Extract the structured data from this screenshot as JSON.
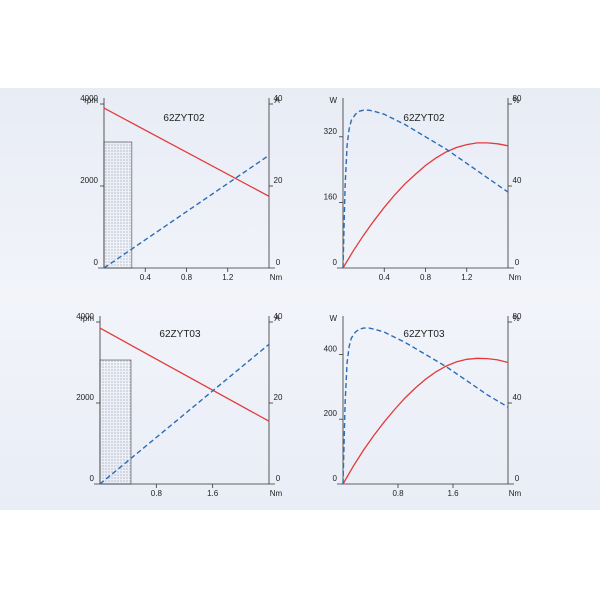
{
  "chart_data": [
    {
      "type": "line",
      "title": "62ZYT02",
      "left_unit": "rpm",
      "right_unit": "A",
      "x_unit": "Nm",
      "xlim": [
        0,
        1.6
      ],
      "ylim_left": [
        0,
        4000
      ],
      "ylim_right": [
        0,
        40
      ],
      "x_ticks": [
        "0.4",
        "0.8",
        "1.2"
      ],
      "x_tick_values": [
        0.4,
        0.8,
        1.2
      ],
      "left_ticks": [
        "0",
        "2000",
        "4000"
      ],
      "left_tick_values": [
        0,
        2000,
        4000
      ],
      "right_ticks": [
        "0",
        "20",
        "40"
      ],
      "right_tick_values": [
        0,
        20,
        40
      ],
      "shaded_region_x": [
        0,
        0.27
      ],
      "series": [
        {
          "axis": "left",
          "style": "solid",
          "color": "#e23a3a",
          "x": [
            0,
            1.6
          ],
          "y": [
            3900,
            1750
          ]
        },
        {
          "axis": "right",
          "style": "dashed",
          "color": "#2a6db5",
          "x": [
            0,
            1.6
          ],
          "y": [
            0,
            27.5
          ]
        }
      ]
    },
    {
      "type": "line",
      "title": "62ZYT02",
      "left_unit": "W",
      "right_unit": "%",
      "x_unit": "Nm",
      "xlim": [
        0,
        1.6
      ],
      "ylim_left": [
        0,
        400
      ],
      "ylim_right": [
        0,
        80
      ],
      "x_ticks": [
        "0.4",
        "0.8",
        "1.2"
      ],
      "x_tick_values": [
        0.4,
        0.8,
        1.2
      ],
      "left_ticks": [
        "0",
        "160",
        "320"
      ],
      "left_tick_values": [
        0,
        160,
        320
      ],
      "right_ticks": [
        "0",
        "40",
        "80"
      ],
      "right_tick_values": [
        0,
        40,
        80
      ],
      "series": [
        {
          "axis": "left",
          "style": "solid",
          "color": "#e23a3a",
          "x": [
            0,
            0.1,
            0.2,
            0.3,
            0.4,
            0.5,
            0.6,
            0.7,
            0.8,
            0.9,
            1.0,
            1.1,
            1.2,
            1.3,
            1.4,
            1.5,
            1.6
          ],
          "y": [
            0,
            42,
            80,
            115,
            148,
            178,
            205,
            228,
            250,
            268,
            283,
            294,
            301,
            305,
            305,
            303,
            298
          ]
        },
        {
          "axis": "right",
          "style": "dashed",
          "color": "#2a6db5",
          "x": [
            0,
            0.02,
            0.04,
            0.06,
            0.08,
            0.12,
            0.16,
            0.2,
            0.25,
            0.3,
            0.4,
            0.5,
            0.6,
            0.8,
            1.0,
            1.2,
            1.4,
            1.6
          ],
          "y": [
            0,
            40,
            60,
            68,
            72,
            75,
            76.5,
            77,
            77,
            76.5,
            75,
            72.5,
            70,
            64,
            58,
            51,
            44,
            37
          ]
        }
      ]
    },
    {
      "type": "line",
      "title": "62ZYT03",
      "left_unit": "rpm",
      "right_unit": "A",
      "x_unit": "Nm",
      "xlim": [
        0,
        2.4
      ],
      "ylim_left": [
        0,
        4000
      ],
      "ylim_right": [
        0,
        40
      ],
      "x_ticks": [
        "0.8",
        "1.6"
      ],
      "x_tick_values": [
        0.8,
        1.6
      ],
      "left_ticks": [
        "0",
        "2000",
        "4000"
      ],
      "left_tick_values": [
        0,
        2000,
        4000
      ],
      "right_ticks": [
        "0",
        "20",
        "40"
      ],
      "right_tick_values": [
        0,
        20,
        40
      ],
      "shaded_region_x": [
        0,
        0.44
      ],
      "series": [
        {
          "axis": "left",
          "style": "solid",
          "color": "#e23a3a",
          "x": [
            0,
            2.4
          ],
          "y": [
            3850,
            1550
          ]
        },
        {
          "axis": "right",
          "style": "dashed",
          "color": "#2a6db5",
          "x": [
            0,
            2.4
          ],
          "y": [
            0,
            34.5
          ]
        }
      ]
    },
    {
      "type": "line",
      "title": "62ZYT03",
      "left_unit": "W",
      "right_unit": "%",
      "x_unit": "Nm",
      "xlim": [
        0,
        2.4
      ],
      "ylim_left": [
        0,
        500
      ],
      "ylim_right": [
        0,
        80
      ],
      "x_ticks": [
        "0.8",
        "1.6"
      ],
      "x_tick_values": [
        0.8,
        1.6
      ],
      "left_ticks": [
        "0",
        "200",
        "400"
      ],
      "left_tick_values": [
        0,
        200,
        400
      ],
      "right_ticks": [
        "0",
        "40",
        "80"
      ],
      "right_tick_values": [
        0,
        40,
        80
      ],
      "series": [
        {
          "axis": "left",
          "style": "solid",
          "color": "#e23a3a",
          "x": [
            0,
            0.15,
            0.3,
            0.45,
            0.6,
            0.75,
            0.9,
            1.05,
            1.2,
            1.35,
            1.5,
            1.65,
            1.8,
            1.95,
            2.1,
            2.25,
            2.4
          ],
          "y": [
            0,
            55,
            105,
            150,
            192,
            230,
            265,
            296,
            323,
            346,
            364,
            377,
            385,
            388,
            387,
            383,
            375
          ]
        },
        {
          "axis": "right",
          "style": "dashed",
          "color": "#2a6db5",
          "x": [
            0,
            0.03,
            0.06,
            0.09,
            0.12,
            0.18,
            0.24,
            0.3,
            0.38,
            0.45,
            0.6,
            0.75,
            0.9,
            1.2,
            1.5,
            1.8,
            2.1,
            2.4
          ],
          "y": [
            0,
            40,
            60,
            68,
            72,
            75,
            76.5,
            77,
            77,
            76.5,
            75,
            72.5,
            70,
            64,
            58,
            51,
            44,
            38
          ]
        }
      ]
    }
  ]
}
